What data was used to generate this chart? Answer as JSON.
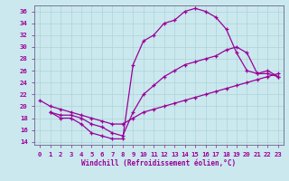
{
  "xlabel": "Windchill (Refroidissement éolien,°C)",
  "bg_color": "#cbe8ee",
  "line_color": "#990099",
  "grid_color": "#aad4d8",
  "xlim": [
    -0.5,
    23.5
  ],
  "ylim": [
    13.5,
    37
  ],
  "yticks": [
    14,
    16,
    18,
    20,
    22,
    24,
    26,
    28,
    30,
    32,
    34,
    36
  ],
  "xticks": [
    0,
    1,
    2,
    3,
    4,
    5,
    6,
    7,
    8,
    9,
    10,
    11,
    12,
    13,
    14,
    15,
    16,
    17,
    18,
    19,
    20,
    21,
    22,
    23
  ],
  "series": [
    {
      "x": [
        1,
        2,
        3,
        4,
        5,
        6,
        7,
        8,
        9,
        10,
        11,
        12,
        13,
        14,
        15,
        16,
        17,
        18,
        19,
        20,
        21,
        22,
        23
      ],
      "y": [
        19,
        18,
        18,
        17,
        15.5,
        15,
        14.5,
        14.5,
        27,
        31,
        32,
        34,
        34.5,
        36,
        36.5,
        36,
        35,
        33,
        29,
        26,
        25.5,
        25.5,
        25
      ]
    },
    {
      "x": [
        1,
        2,
        3,
        4,
        5,
        6,
        7,
        8,
        9,
        10,
        11,
        12,
        13,
        14,
        15,
        16,
        17,
        18,
        19,
        20,
        21,
        22,
        23
      ],
      "y": [
        19,
        18.5,
        18.5,
        18,
        17,
        16.5,
        15.5,
        15,
        19,
        22,
        23.5,
        25,
        26,
        27,
        27.5,
        28,
        28.5,
        29.5,
        30,
        29,
        25.5,
        26,
        25
      ]
    },
    {
      "x": [
        0,
        1,
        2,
        3,
        4,
        5,
        6,
        7,
        8,
        9,
        10,
        11,
        12,
        13,
        14,
        15,
        16,
        17,
        18,
        19,
        20,
        21,
        22,
        23
      ],
      "y": [
        21,
        20,
        19.5,
        19,
        18.5,
        18,
        17.5,
        17,
        17,
        18,
        19,
        19.5,
        20,
        20.5,
        21,
        21.5,
        22,
        22.5,
        23,
        23.5,
        24,
        24.5,
        25,
        25.5
      ]
    }
  ]
}
